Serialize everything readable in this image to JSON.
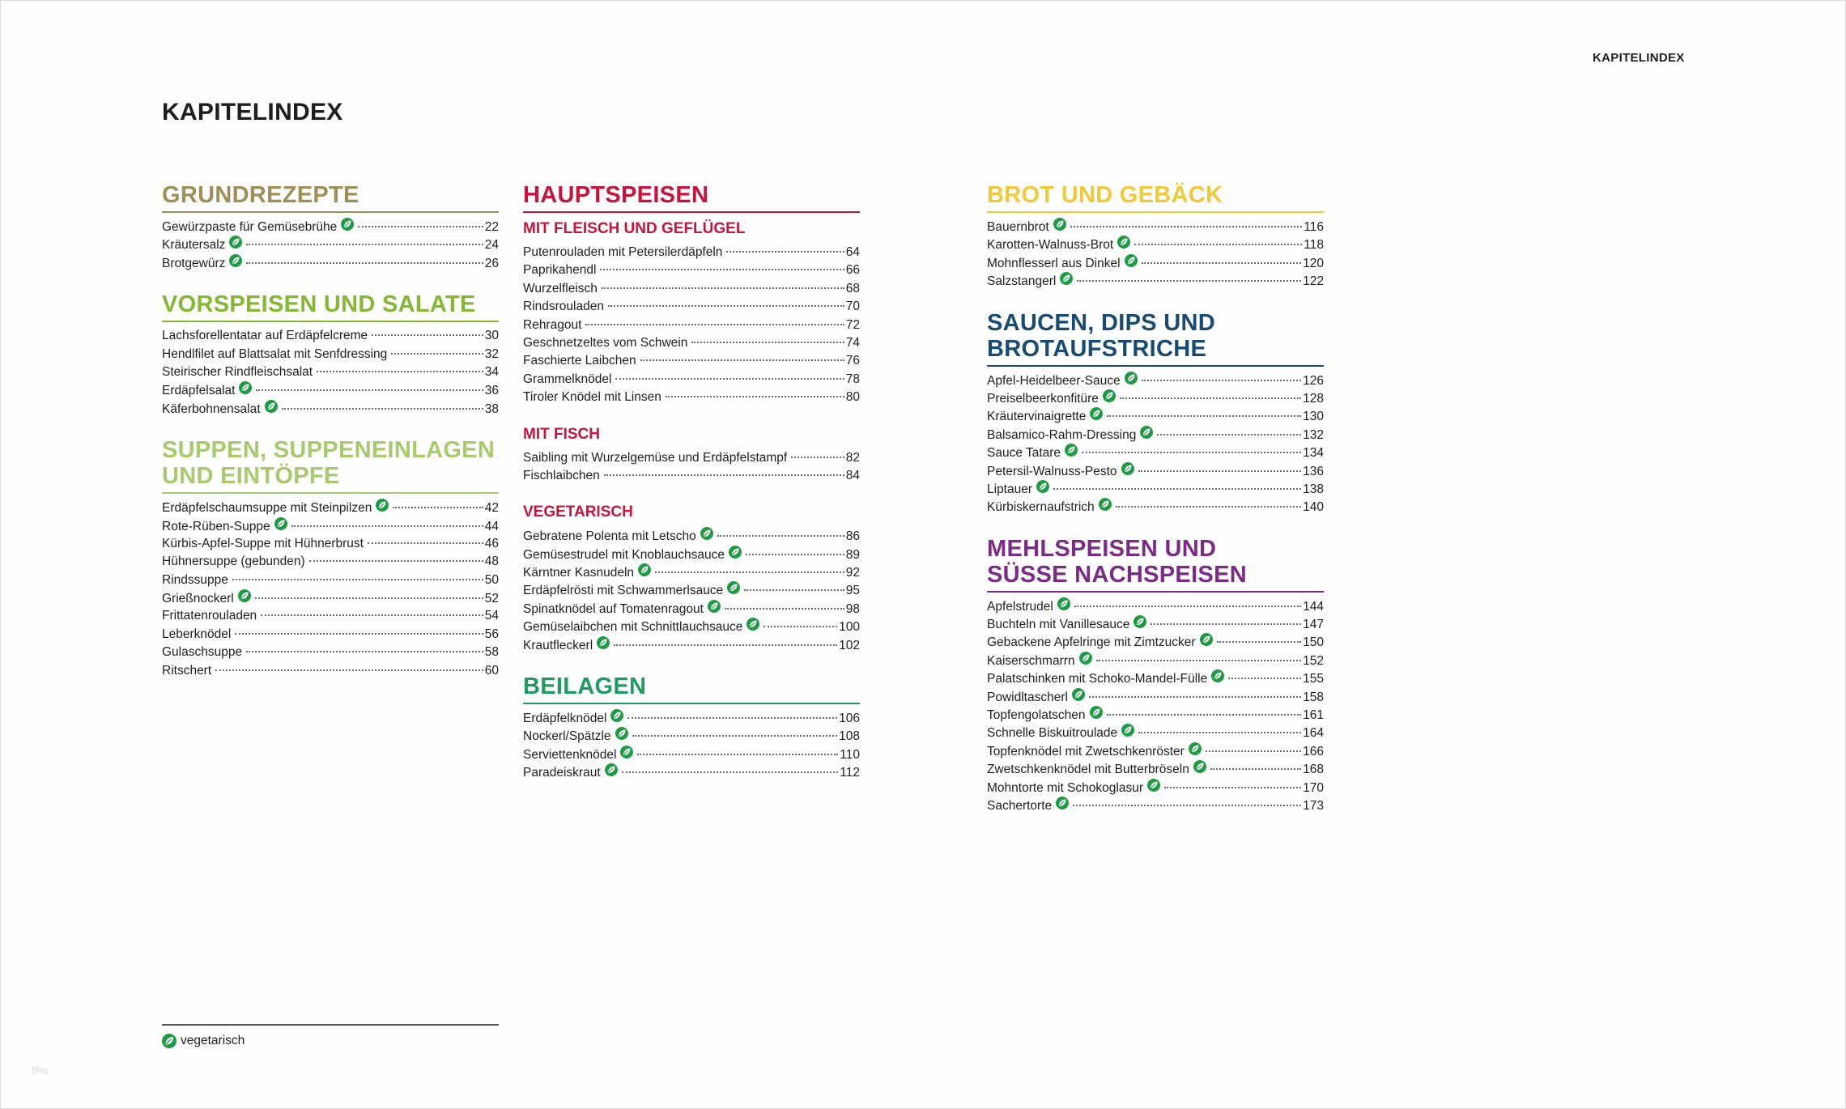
{
  "running_head": "KAPITELINDEX",
  "title": "KAPITELINDEX",
  "folio": "Blog",
  "legend": {
    "icon": "vegetarian-leaf-icon",
    "label": "vegetarisch"
  },
  "colors": {
    "grundrezepte": "#9b9158",
    "vorspeisen": "#85b832",
    "suppen": "#a8c96e",
    "hauptspeisen": "#c8143c",
    "beilagen": "#1f9a63",
    "brot": "#f0c93a",
    "saucen": "#184a72",
    "mehlspeisen": "#7b2a86",
    "leaf": "#1f9a45"
  },
  "col1": {
    "grundrezepte": {
      "title": "GRUNDREZEPTE",
      "entries": [
        {
          "title": "Gewürzpaste für Gemüsebrühe",
          "page": "22",
          "veg": true
        },
        {
          "title": "Kräutersalz",
          "page": "24",
          "veg": true
        },
        {
          "title": "Brotgewürz",
          "page": "26",
          "veg": true
        }
      ]
    },
    "vorspeisen": {
      "title": "VORSPEISEN UND SALATE",
      "entries": [
        {
          "title": "Lachsforellentatar auf Erdäpfelcreme",
          "page": "30",
          "veg": false
        },
        {
          "title": "Hendlfilet auf Blattsalat mit Senfdressing",
          "page": "32",
          "veg": false
        },
        {
          "title": "Steirischer Rindfleischsalat",
          "page": "34",
          "veg": false
        },
        {
          "title": "Erdäpfelsalat",
          "page": "36",
          "veg": true
        },
        {
          "title": "Käferbohnensalat",
          "page": "38",
          "veg": true
        }
      ]
    },
    "suppen": {
      "title_line1": "SUPPEN, SUPPENEINLAGEN",
      "title_line2": "UND EINTÖPFE",
      "entries": [
        {
          "title": "Erdäpfelschaumsuppe mit Steinpilzen",
          "page": "42",
          "veg": true
        },
        {
          "title": "Rote-Rüben-Suppe",
          "page": "44",
          "veg": true
        },
        {
          "title": "Kürbis-Apfel-Suppe mit Hühnerbrust",
          "page": "46",
          "veg": false
        },
        {
          "title": "Hühnersuppe (gebunden)",
          "page": "48",
          "veg": false
        },
        {
          "title": "Rindssuppe",
          "page": "50",
          "veg": false
        },
        {
          "title": "Grießnockerl",
          "page": "52",
          "veg": true
        },
        {
          "title": "Frittatenrouladen",
          "page": "54",
          "veg": false
        },
        {
          "title": "Leberknödel",
          "page": "56",
          "veg": false
        },
        {
          "title": "Gulaschsuppe",
          "page": "58",
          "veg": false
        },
        {
          "title": "Ritschert",
          "page": "60",
          "veg": false
        }
      ]
    }
  },
  "col2": {
    "hauptspeisen": {
      "title": "HAUPTSPEISEN",
      "fleisch": {
        "title": "MIT FLEISCH UND GEFLÜGEL",
        "entries": [
          {
            "title": "Putenrouladen mit Petersilerdäpfeln",
            "page": "64",
            "veg": false
          },
          {
            "title": "Paprikahendl",
            "page": "66",
            "veg": false
          },
          {
            "title": "Wurzelfleisch",
            "page": "68",
            "veg": false
          },
          {
            "title": "Rindsrouladen",
            "page": "70",
            "veg": false
          },
          {
            "title": "Rehragout",
            "page": "72",
            "veg": false
          },
          {
            "title": "Geschnetzeltes vom Schwein",
            "page": "74",
            "veg": false
          },
          {
            "title": "Faschierte Laibchen",
            "page": "76",
            "veg": false
          },
          {
            "title": "Grammelknödel",
            "page": "78",
            "veg": false
          },
          {
            "title": "Tiroler Knödel mit Linsen",
            "page": "80",
            "veg": false
          }
        ]
      },
      "fisch": {
        "title": "MIT FISCH",
        "entries": [
          {
            "title": "Saibling mit Wurzelgemüse und Erdäpfelstampf",
            "page": "82",
            "veg": false
          },
          {
            "title": "Fischlaibchen",
            "page": "84",
            "veg": false
          }
        ]
      },
      "vegetarisch": {
        "title": "VEGETARISCH",
        "entries": [
          {
            "title": "Gebratene Polenta mit Letscho",
            "page": "86",
            "veg": true
          },
          {
            "title": "Gemüsestrudel mit Knoblauchsauce",
            "page": "89",
            "veg": true
          },
          {
            "title": "Kärntner Kasnudeln",
            "page": "92",
            "veg": true
          },
          {
            "title": "Erdäpfelrösti mit Schwammerlsauce",
            "page": "95",
            "veg": true
          },
          {
            "title": "Spinatknödel auf Tomatenragout",
            "page": "98",
            "veg": true
          },
          {
            "title": "Gemüselaibchen mit Schnittlauchsauce",
            "page": "100",
            "veg": true
          },
          {
            "title": "Krautfleckerl",
            "page": "102",
            "veg": true
          }
        ]
      }
    },
    "beilagen": {
      "title": "BEILAGEN",
      "entries": [
        {
          "title": "Erdäpfelknödel",
          "page": "106",
          "veg": true
        },
        {
          "title": "Nockerl/Spätzle",
          "page": "108",
          "veg": true
        },
        {
          "title": "Serviettenknödel",
          "page": "110",
          "veg": true
        },
        {
          "title": "Paradeiskraut",
          "page": "112",
          "veg": true
        }
      ]
    }
  },
  "col3": {
    "brot": {
      "title": "BROT UND GEBÄCK",
      "entries": [
        {
          "title": "Bauernbrot",
          "page": "116",
          "veg": true
        },
        {
          "title": "Karotten-Walnuss-Brot",
          "page": "118",
          "veg": true
        },
        {
          "title": "Mohnflesserl aus Dinkel",
          "page": "120",
          "veg": true
        },
        {
          "title": "Salzstangerl",
          "page": "122",
          "veg": true
        }
      ]
    },
    "saucen": {
      "title_line1": "SAUCEN, DIPS UND",
      "title_line2": "BROTAUFSTRICHE",
      "entries": [
        {
          "title": "Apfel-Heidelbeer-Sauce",
          "page": "126",
          "veg": true
        },
        {
          "title": "Preiselbeerkonfitüre",
          "page": "128",
          "veg": true
        },
        {
          "title": "Kräutervinaigrette",
          "page": "130",
          "veg": true
        },
        {
          "title": "Balsamico-Rahm-Dressing",
          "page": "132",
          "veg": true
        },
        {
          "title": "Sauce Tatare",
          "page": "134",
          "veg": true
        },
        {
          "title": "Petersil-Walnuss-Pesto",
          "page": "136",
          "veg": true
        },
        {
          "title": "Liptauer",
          "page": "138",
          "veg": true
        },
        {
          "title": "Kürbiskernaufstrich",
          "page": "140",
          "veg": true
        }
      ]
    },
    "mehlspeisen": {
      "title_line1": "MEHLSPEISEN UND",
      "title_line2": "SÜSSE NACHSPEISEN",
      "entries": [
        {
          "title": "Apfelstrudel",
          "page": "144",
          "veg": true
        },
        {
          "title": "Buchteln mit Vanillesauce",
          "page": "147",
          "veg": true
        },
        {
          "title": "Gebackene Apfelringe mit Zimtzucker",
          "page": "150",
          "veg": true
        },
        {
          "title": "Kaiserschmarrn",
          "page": "152",
          "veg": true
        },
        {
          "title": "Palatschinken mit Schoko-Mandel-Fülle",
          "page": "155",
          "veg": true
        },
        {
          "title": "Powidltascherl",
          "page": "158",
          "veg": true
        },
        {
          "title": "Topfengolatschen",
          "page": "161",
          "veg": true
        },
        {
          "title": "Schnelle Biskuitroulade",
          "page": "164",
          "veg": true
        },
        {
          "title": "Topfenknödel mit Zwetschkenröster",
          "page": "166",
          "veg": true
        },
        {
          "title": "Zwetschkenknödel mit Butterbröseln",
          "page": "168",
          "veg": true
        },
        {
          "title": "Mohntorte mit Schokoglasur",
          "page": "170",
          "veg": true
        },
        {
          "title": "Sachertorte",
          "page": "173",
          "veg": true
        }
      ]
    }
  }
}
